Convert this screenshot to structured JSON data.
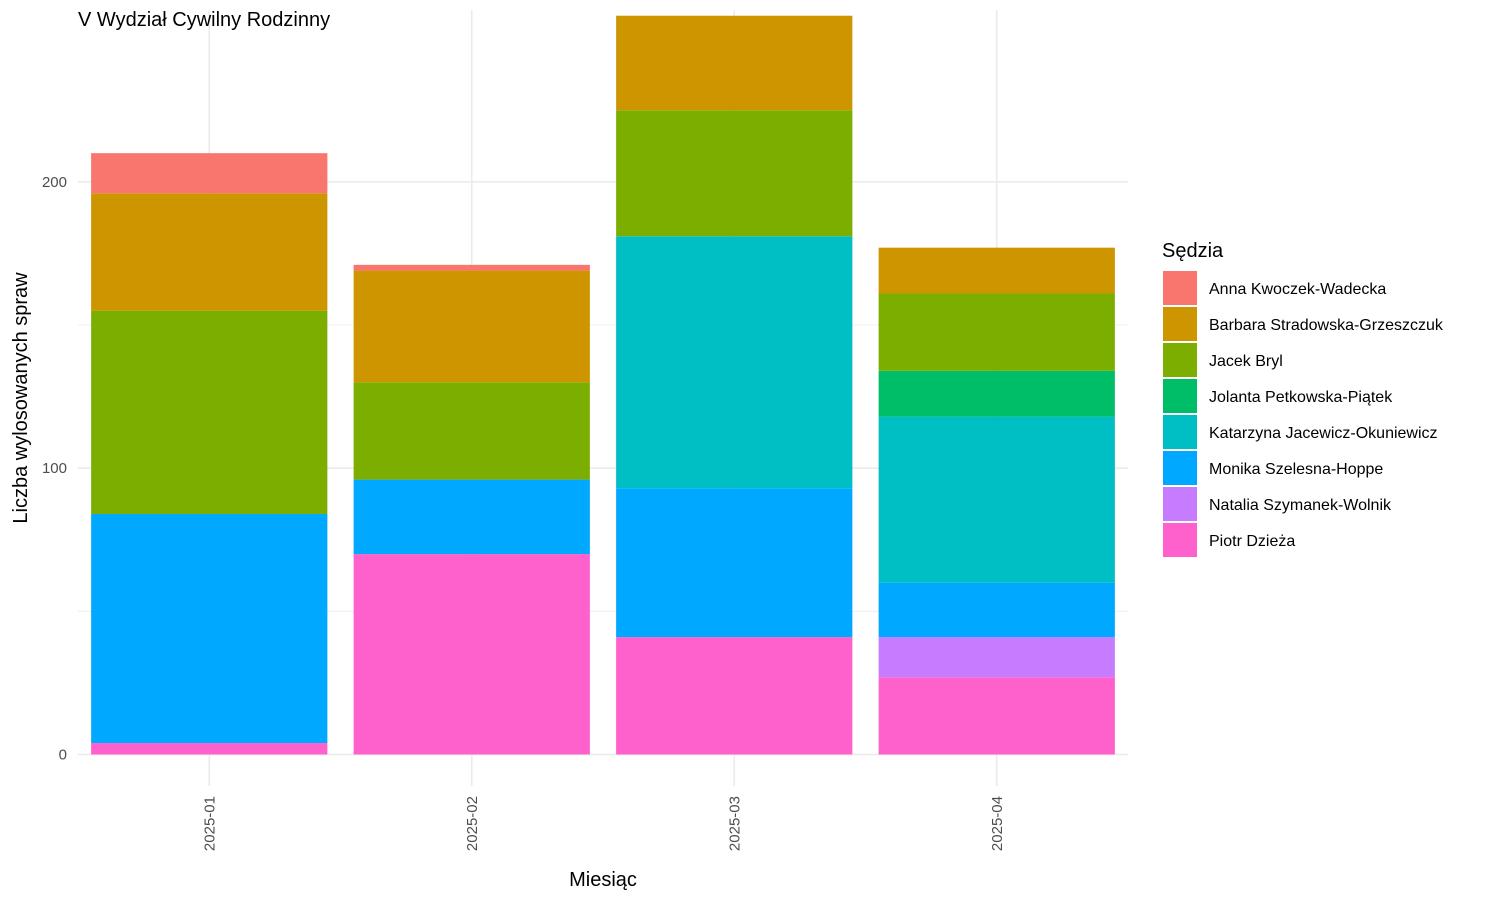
{
  "chart_data": {
    "type": "bar",
    "stacked": true,
    "title": "V Wydział Cywilny Rodzinny",
    "xlabel": "Miesiąc",
    "ylabel": "Liczba wylosowanych spraw",
    "categories": [
      "2025-01",
      "2025-02",
      "2025-03",
      "2025-04"
    ],
    "ylim": [
      -11,
      260
    ],
    "yticks": [
      0,
      100,
      200
    ],
    "grid": true,
    "legend": {
      "title": "Sędzia",
      "position": "right"
    },
    "series": [
      {
        "name": "Anna Kwoczek-Wadecka",
        "color": "#F8766D",
        "values": [
          14,
          2,
          0,
          0
        ]
      },
      {
        "name": "Barbara Stradowska-Grzeszczuk",
        "color": "#CD9600",
        "values": [
          41,
          39,
          33,
          16
        ]
      },
      {
        "name": "Jacek Bryl",
        "color": "#7CAE00",
        "values": [
          71,
          34,
          44,
          27
        ]
      },
      {
        "name": "Jolanta Petkowska-Piątek",
        "color": "#00BE67",
        "values": [
          0,
          0,
          0,
          16
        ]
      },
      {
        "name": "Katarzyna Jacewicz-Okuniewicz",
        "color": "#00BFC4",
        "values": [
          0,
          0,
          88,
          58
        ]
      },
      {
        "name": "Monika Szelesna-Hoppe",
        "color": "#00A9FF",
        "values": [
          80,
          26,
          52,
          19
        ]
      },
      {
        "name": "Natalia Szymanek-Wolnik",
        "color": "#C77CFF",
        "values": [
          0,
          0,
          0,
          14
        ]
      },
      {
        "name": "Piotr Dzieża",
        "color": "#FF61CC",
        "values": [
          4,
          70,
          41,
          27
        ]
      }
    ]
  }
}
